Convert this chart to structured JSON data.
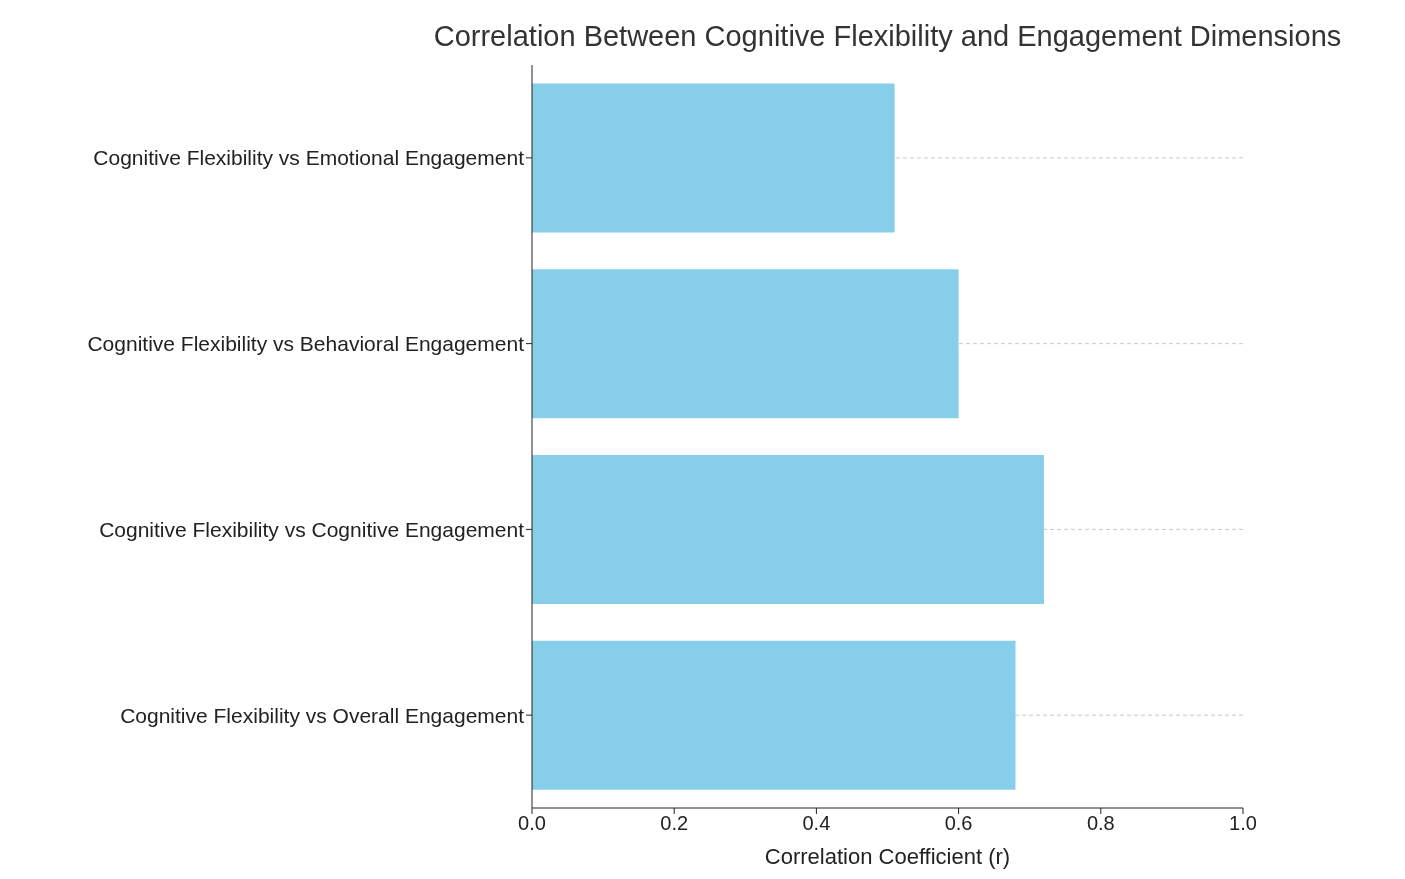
{
  "chart_data": {
    "type": "bar",
    "orientation": "horizontal",
    "title": "Correlation Between Cognitive Flexibility and Engagement Dimensions",
    "xlabel": "Correlation Coefficient (r)",
    "categories": [
      "Cognitive Flexibility vs Emotional Engagement",
      "Cognitive Flexibility vs Behavioral Engagement",
      "Cognitive Flexibility vs Cognitive Engagement",
      "Cognitive Flexibility vs Overall Engagement"
    ],
    "values": [
      0.51,
      0.6,
      0.72,
      0.68
    ],
    "color": "#87ceeb",
    "xlim": [
      0,
      1
    ],
    "xticks": [
      {
        "value": 0,
        "label": "0.0"
      },
      {
        "value": 0.2,
        "label": "0.2"
      },
      {
        "value": 0.4,
        "label": "0.4"
      },
      {
        "value": 0.6,
        "label": "0.6"
      },
      {
        "value": 0.8,
        "label": "0.8"
      },
      {
        "value": 1,
        "label": "1.0"
      }
    ],
    "grid": "y",
    "legend": false
  }
}
